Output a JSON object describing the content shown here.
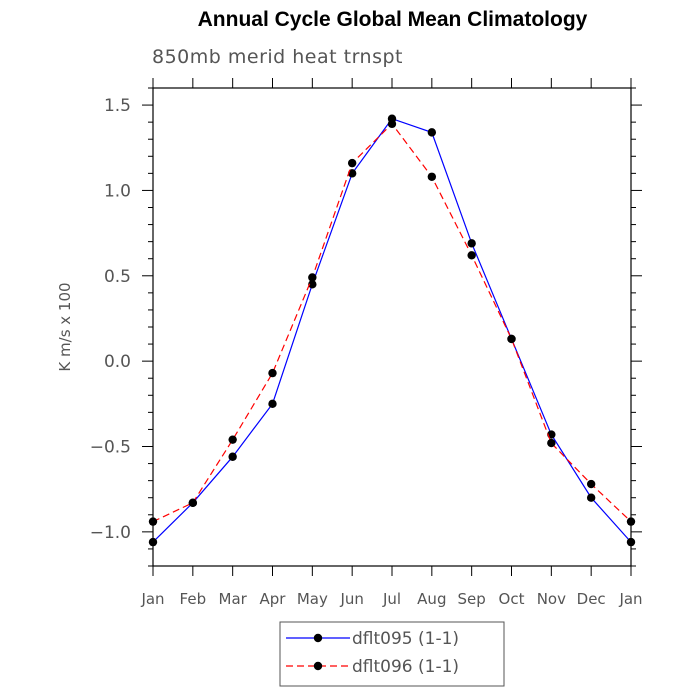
{
  "chart_data": {
    "type": "line",
    "title": "Annual Cycle Global Mean Climatology",
    "subtitle": "850mb merid heat trnspt",
    "xlabel": "",
    "ylabel": "K m/s x 100",
    "categories": [
      "Jan",
      "Feb",
      "Mar",
      "Apr",
      "May",
      "Jun",
      "Jul",
      "Aug",
      "Sep",
      "Oct",
      "Nov",
      "Dec",
      "Jan"
    ],
    "yticks": [
      "1.5",
      "1.0",
      "0.5",
      "0.0",
      "−0.5",
      "−1.0"
    ],
    "ylim": [
      -1.2,
      1.6
    ],
    "grid": false,
    "legend_position": "bottom",
    "series": [
      {
        "name": "dflt095 (1-1)",
        "color": "#0000ff",
        "dash": "solid",
        "values": [
          -1.06,
          -0.83,
          -0.56,
          -0.25,
          0.45,
          1.1,
          1.42,
          1.34,
          0.69,
          0.13,
          -0.43,
          -0.8,
          -1.06
        ]
      },
      {
        "name": "dflt096 (1-1)",
        "color": "#ff0000",
        "dash": "dashed",
        "values": [
          -0.94,
          -0.83,
          -0.46,
          -0.07,
          0.49,
          1.16,
          1.39,
          1.08,
          0.62,
          0.13,
          -0.48,
          -0.72,
          -0.94
        ]
      }
    ]
  }
}
